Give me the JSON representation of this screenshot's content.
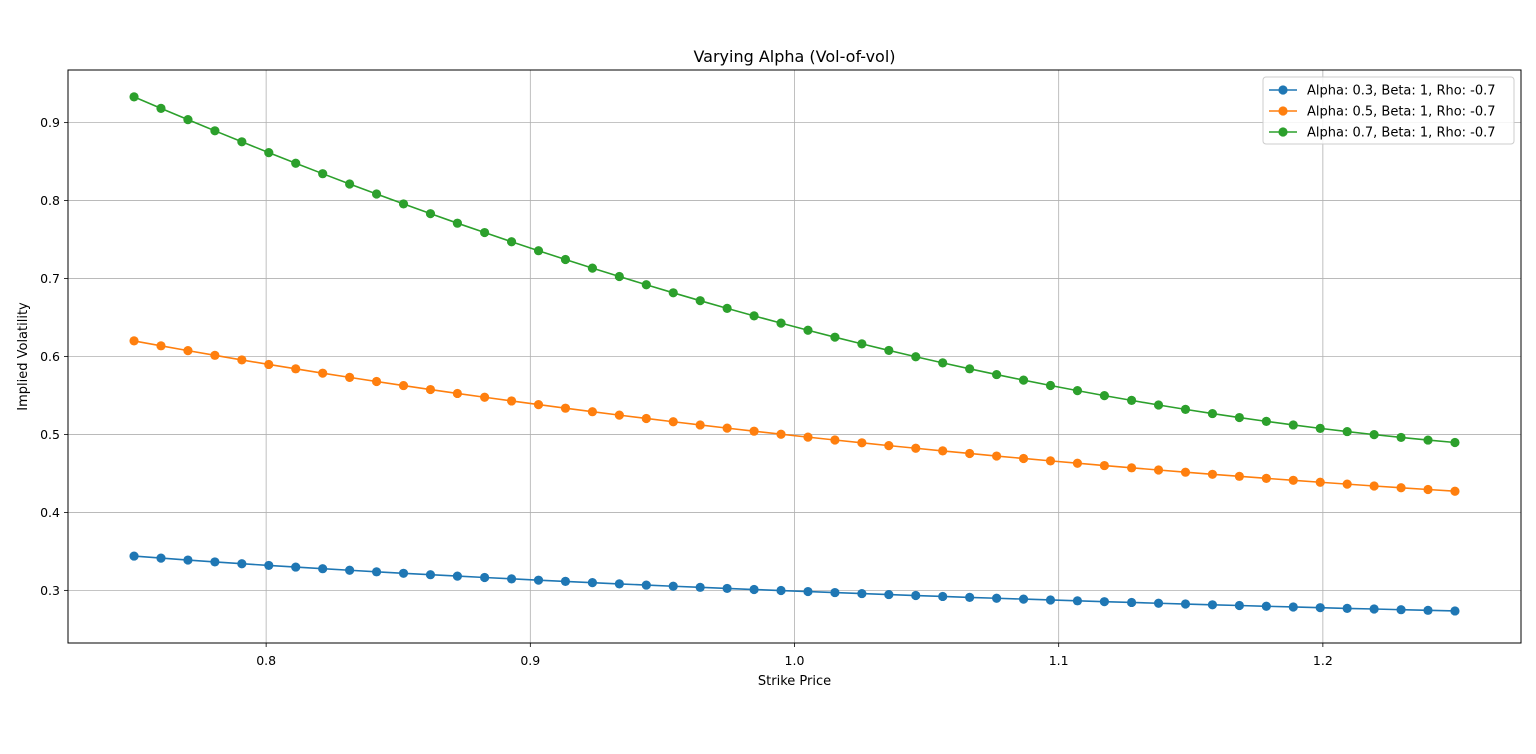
{
  "chart_data": {
    "type": "line",
    "title": "Varying Alpha (Vol-of-vol)",
    "xlabel": "Strike Price",
    "ylabel": "Implied Volatility",
    "xlim": [
      0.725,
      1.275
    ],
    "ylim": [
      0.2325,
      0.9675
    ],
    "xticks": [
      "0.8",
      "0.9",
      "1.0",
      "1.1",
      "1.2"
    ],
    "yticks": [
      "0.3",
      "0.4",
      "0.5",
      "0.6",
      "0.7",
      "0.8",
      "0.9"
    ],
    "grid": true,
    "legend_position": "top-right",
    "marker": "circle",
    "x": [
      0.75,
      0.7602,
      0.7704,
      0.7806,
      0.7908,
      0.801,
      0.8112,
      0.8214,
      0.8316,
      0.8418,
      0.852,
      0.8622,
      0.8724,
      0.8827,
      0.8929,
      0.9031,
      0.9133,
      0.9235,
      0.9337,
      0.9439,
      0.9541,
      0.9643,
      0.9745,
      0.9847,
      0.9949,
      1.0051,
      1.0153,
      1.0255,
      1.0357,
      1.0459,
      1.0561,
      1.0663,
      1.0765,
      1.0867,
      1.0969,
      1.1071,
      1.1173,
      1.1276,
      1.1378,
      1.148,
      1.1582,
      1.1684,
      1.1786,
      1.1888,
      1.199,
      1.2092,
      1.2194,
      1.2296,
      1.2398,
      1.25
    ],
    "series": [
      {
        "name": "Alpha: 0.3, Beta: 1, Rho: -0.7",
        "color": "#1f77b4",
        "values": [
          0.344,
          0.3414,
          0.3389,
          0.3365,
          0.3342,
          0.332,
          0.3299,
          0.3278,
          0.3258,
          0.3238,
          0.3219,
          0.3201,
          0.3183,
          0.3165,
          0.3148,
          0.3131,
          0.3115,
          0.3099,
          0.3083,
          0.3068,
          0.3053,
          0.3039,
          0.3025,
          0.3011,
          0.2998,
          0.2985,
          0.2972,
          0.2959,
          0.2946,
          0.2934,
          0.2922,
          0.291,
          0.2899,
          0.2888,
          0.2877,
          0.2866,
          0.2855,
          0.2845,
          0.2835,
          0.2825,
          0.2815,
          0.2806,
          0.2796,
          0.2787,
          0.2778,
          0.2769,
          0.2761,
          0.2752,
          0.2744,
          0.2736
        ]
      },
      {
        "name": "Alpha: 0.5, Beta: 1, Rho: -0.7",
        "color": "#ff7f0e",
        "values": [
          0.62,
          0.6137,
          0.6075,
          0.6015,
          0.5956,
          0.5898,
          0.5842,
          0.5786,
          0.5732,
          0.5679,
          0.5627,
          0.5576,
          0.5526,
          0.5477,
          0.543,
          0.5383,
          0.5337,
          0.5292,
          0.5248,
          0.5205,
          0.5163,
          0.5122,
          0.5081,
          0.5042,
          0.5003,
          0.4966,
          0.4929,
          0.4893,
          0.4857,
          0.4823,
          0.4789,
          0.4756,
          0.4723,
          0.4692,
          0.4661,
          0.4631,
          0.4601,
          0.4572,
          0.4544,
          0.4516,
          0.4489,
          0.4463,
          0.4437,
          0.4412,
          0.4387,
          0.4363,
          0.4339,
          0.4316,
          0.4294,
          0.4272
        ]
      },
      {
        "name": "Alpha: 0.7, Beta: 1, Rho: -0.7",
        "color": "#2ca02c",
        "values": [
          0.933,
          0.9183,
          0.9038,
          0.8895,
          0.8754,
          0.8615,
          0.8479,
          0.8345,
          0.8213,
          0.8084,
          0.7957,
          0.7832,
          0.771,
          0.759,
          0.7472,
          0.7357,
          0.7244,
          0.7134,
          0.7026,
          0.692,
          0.6817,
          0.6716,
          0.6617,
          0.6521,
          0.6428,
          0.6337,
          0.6248,
          0.6162,
          0.6078,
          0.5997,
          0.5918,
          0.5842,
          0.5768,
          0.5697,
          0.5628,
          0.5562,
          0.5498,
          0.5437,
          0.5378,
          0.5322,
          0.5268,
          0.5217,
          0.5168,
          0.5122,
          0.5078,
          0.5037,
          0.4998,
          0.4962,
          0.4928,
          0.4897
        ]
      }
    ]
  }
}
